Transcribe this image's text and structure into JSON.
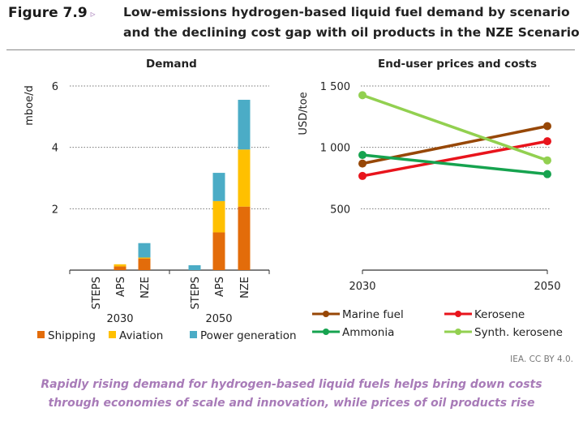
{
  "figure": {
    "label": "Figure 7.9",
    "marker": "▹",
    "title_line1": "Low-emissions hydrogen-based liquid fuel demand by scenario",
    "title_line2": "and the declining cost gap with oil products in the NZE Scenario",
    "source": "IEA. CC BY 4.0.",
    "caption_line1": "Rapidly rising demand for hydrogen-based liquid fuels helps bring down costs",
    "caption_line2": "through economies of scale and innovation, while prices of oil products rise"
  },
  "chart_data": [
    {
      "type": "bar",
      "stacked": true,
      "title": "Demand",
      "ylabel": "mboe/d",
      "ylim": [
        0,
        6
      ],
      "yticks": [
        "2",
        "4",
        "6"
      ],
      "grid": true,
      "groups": [
        "2030",
        "2050"
      ],
      "categories": [
        "STEPS",
        "APS",
        "NZE"
      ],
      "legend_position": "bottom",
      "series": [
        {
          "name": "Shipping",
          "color": "#e36c0a",
          "values": [
            [
              0,
              0.12,
              0.38
            ],
            [
              0,
              1.23,
              2.07
            ]
          ]
        },
        {
          "name": "Aviation",
          "color": "#ffc000",
          "values": [
            [
              0,
              0.07,
              0.03
            ],
            [
              0,
              1.02,
              1.86
            ]
          ]
        },
        {
          "name": "Power generation",
          "color": "#4bacc6",
          "values": [
            [
              0,
              0,
              0.47
            ],
            [
              0.16,
              0.92,
              1.62
            ]
          ]
        }
      ]
    },
    {
      "type": "line",
      "title": "End-user prices and costs",
      "ylabel": "USD/toe",
      "ylim": [
        0,
        1500
      ],
      "yticks": [
        "500",
        "1 000",
        "1 500"
      ],
      "grid": true,
      "x": [
        "2030",
        "2050"
      ],
      "legend_position": "bottom",
      "series": [
        {
          "name": "Marine fuel",
          "color": "#974706",
          "values": [
            868,
            1173
          ]
        },
        {
          "name": "Kerosene",
          "color": "#e8141c",
          "values": [
            767,
            1050
          ]
        },
        {
          "name": "Ammonia",
          "color": "#16a34f",
          "values": [
            938,
            782
          ]
        },
        {
          "name": "Synth. kerosene",
          "color": "#92d050",
          "values": [
            1425,
            894
          ]
        }
      ]
    }
  ]
}
